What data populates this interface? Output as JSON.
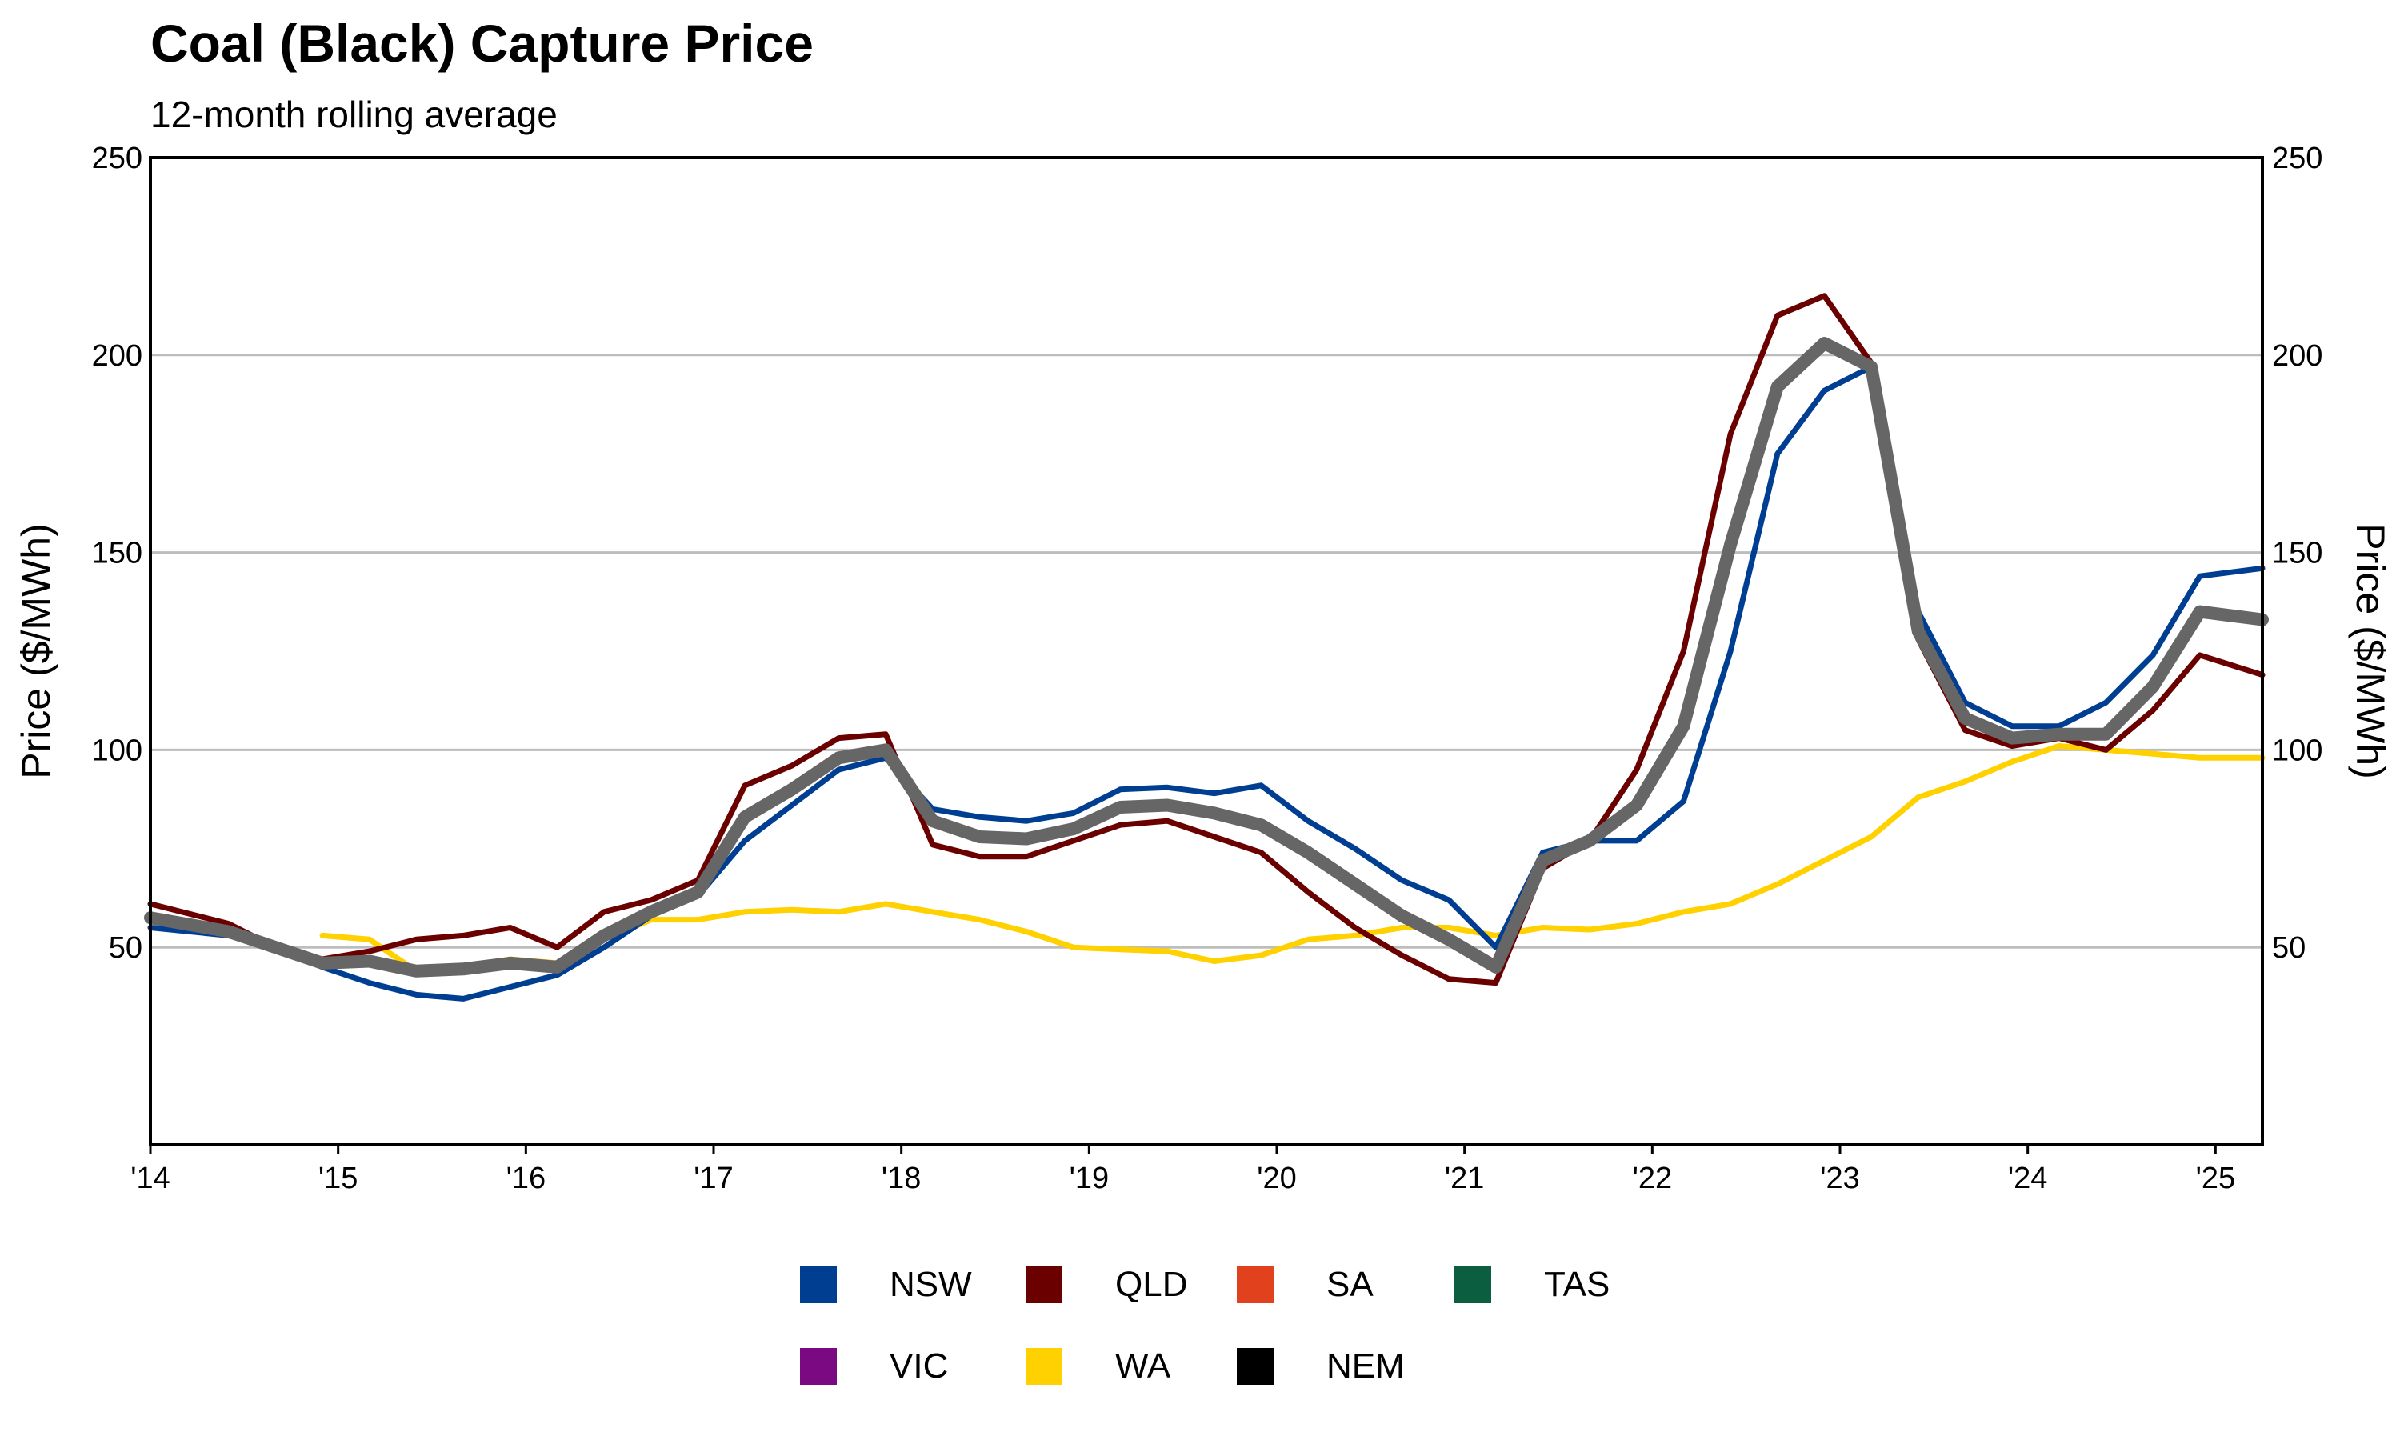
{
  "chart_data": {
    "type": "line",
    "title": "Coal (Black) Capture Price",
    "subtitle": "12-month rolling average",
    "ylabel": "Price ($/MWh)",
    "ylabel_right": "Price ($/MWh)",
    "xlabel": "",
    "ylim": [
      0,
      250
    ],
    "xlim": [
      "2014-01",
      "2025-04"
    ],
    "yticks": [
      50,
      100,
      150,
      200,
      250
    ],
    "ytick_labels": [
      "50",
      "100",
      "150",
      "200",
      "250"
    ],
    "xticks": [
      "2014-01",
      "2015-01",
      "2016-01",
      "2017-01",
      "2018-01",
      "2019-01",
      "2020-01",
      "2021-01",
      "2022-01",
      "2023-01",
      "2024-01",
      "2025-01"
    ],
    "xtick_labels": [
      "'14",
      "'15",
      "'16",
      "'17",
      "'18",
      "'19",
      "'20",
      "'21",
      "'22",
      "'23",
      "'24",
      "'25"
    ],
    "grid": "horizontal",
    "legend_position": "bottom",
    "series": [
      {
        "name": "WA",
        "color": "#FFD100",
        "width": 7,
        "points": [
          [
            "2014-12",
            53
          ],
          [
            "2015-03",
            52
          ],
          [
            "2015-06",
            44
          ],
          [
            "2015-09",
            45
          ],
          [
            "2015-12",
            47
          ],
          [
            "2016-03",
            46
          ],
          [
            "2016-06",
            52
          ],
          [
            "2016-09",
            57
          ],
          [
            "2016-12",
            57
          ],
          [
            "2017-03",
            59
          ],
          [
            "2017-06",
            59.5
          ],
          [
            "2017-09",
            59
          ],
          [
            "2017-12",
            61
          ],
          [
            "2018-03",
            59
          ],
          [
            "2018-06",
            57
          ],
          [
            "2018-09",
            54
          ],
          [
            "2018-12",
            50
          ],
          [
            "2019-03",
            49.5
          ],
          [
            "2019-06",
            49
          ],
          [
            "2019-09",
            46.5
          ],
          [
            "2019-12",
            48
          ],
          [
            "2020-03",
            52
          ],
          [
            "2020-06",
            53
          ],
          [
            "2020-09",
            55
          ],
          [
            "2020-12",
            55
          ],
          [
            "2021-03",
            53
          ],
          [
            "2021-06",
            55
          ],
          [
            "2021-09",
            54.5
          ],
          [
            "2021-12",
            56
          ],
          [
            "2022-03",
            59
          ],
          [
            "2022-06",
            61
          ],
          [
            "2022-09",
            66
          ],
          [
            "2022-12",
            72
          ],
          [
            "2023-03",
            78
          ],
          [
            "2023-06",
            88
          ],
          [
            "2023-09",
            92
          ],
          [
            "2023-12",
            97
          ],
          [
            "2024-03",
            101
          ],
          [
            "2024-06",
            100
          ],
          [
            "2024-09",
            99
          ],
          [
            "2024-12",
            98
          ],
          [
            "2025-04",
            98
          ]
        ]
      },
      {
        "name": "NSW",
        "color": "#003E92",
        "width": 7,
        "points": [
          [
            "2014-01",
            55
          ],
          [
            "2014-06",
            53
          ],
          [
            "2014-09",
            50
          ],
          [
            "2014-12",
            45
          ],
          [
            "2015-03",
            41
          ],
          [
            "2015-06",
            38
          ],
          [
            "2015-09",
            37
          ],
          [
            "2015-12",
            40
          ],
          [
            "2016-03",
            43
          ],
          [
            "2016-06",
            50
          ],
          [
            "2016-09",
            58
          ],
          [
            "2016-12",
            63
          ],
          [
            "2017-03",
            77
          ],
          [
            "2017-06",
            86
          ],
          [
            "2017-09",
            95
          ],
          [
            "2017-12",
            98
          ],
          [
            "2018-03",
            85
          ],
          [
            "2018-06",
            83
          ],
          [
            "2018-09",
            82
          ],
          [
            "2018-12",
            84
          ],
          [
            "2019-03",
            90
          ],
          [
            "2019-06",
            90.5
          ],
          [
            "2019-09",
            89
          ],
          [
            "2019-12",
            91
          ],
          [
            "2020-03",
            82
          ],
          [
            "2020-06",
            75
          ],
          [
            "2020-09",
            67
          ],
          [
            "2020-12",
            62
          ],
          [
            "2021-03",
            50
          ],
          [
            "2021-06",
            74
          ],
          [
            "2021-09",
            77
          ],
          [
            "2021-12",
            77
          ],
          [
            "2022-03",
            87
          ],
          [
            "2022-06",
            125
          ],
          [
            "2022-09",
            175
          ],
          [
            "2022-12",
            191
          ],
          [
            "2023-03",
            197
          ],
          [
            "2023-06",
            135
          ],
          [
            "2023-09",
            112
          ],
          [
            "2023-12",
            106
          ],
          [
            "2024-03",
            106
          ],
          [
            "2024-06",
            112
          ],
          [
            "2024-09",
            124
          ],
          [
            "2024-12",
            144
          ],
          [
            "2025-04",
            146
          ]
        ]
      },
      {
        "name": "QLD",
        "color": "#6A0000",
        "width": 7,
        "points": [
          [
            "2014-01",
            61
          ],
          [
            "2014-06",
            56
          ],
          [
            "2014-09",
            50
          ],
          [
            "2014-12",
            47
          ],
          [
            "2015-03",
            49
          ],
          [
            "2015-06",
            52
          ],
          [
            "2015-09",
            53
          ],
          [
            "2015-12",
            55
          ],
          [
            "2016-03",
            50
          ],
          [
            "2016-06",
            59
          ],
          [
            "2016-09",
            62
          ],
          [
            "2016-12",
            67
          ],
          [
            "2017-03",
            91
          ],
          [
            "2017-06",
            96
          ],
          [
            "2017-09",
            103
          ],
          [
            "2017-12",
            104
          ],
          [
            "2018-03",
            76
          ],
          [
            "2018-06",
            73
          ],
          [
            "2018-09",
            73
          ],
          [
            "2018-12",
            77
          ],
          [
            "2019-03",
            81
          ],
          [
            "2019-06",
            82
          ],
          [
            "2019-09",
            78
          ],
          [
            "2019-12",
            74
          ],
          [
            "2020-03",
            64
          ],
          [
            "2020-06",
            55
          ],
          [
            "2020-09",
            48
          ],
          [
            "2020-12",
            42
          ],
          [
            "2021-03",
            41
          ],
          [
            "2021-06",
            70
          ],
          [
            "2021-09",
            77
          ],
          [
            "2021-12",
            95
          ],
          [
            "2022-03",
            125
          ],
          [
            "2022-06",
            180
          ],
          [
            "2022-09",
            210
          ],
          [
            "2022-12",
            215
          ],
          [
            "2023-03",
            198
          ],
          [
            "2023-06",
            128
          ],
          [
            "2023-09",
            105
          ],
          [
            "2023-12",
            101
          ],
          [
            "2024-03",
            103
          ],
          [
            "2024-06",
            100
          ],
          [
            "2024-09",
            110
          ],
          [
            "2024-12",
            124
          ],
          [
            "2025-04",
            119
          ]
        ]
      },
      {
        "name": "NEM",
        "color": "#666666",
        "width": 16,
        "points": [
          [
            "2014-01",
            57.5
          ],
          [
            "2014-06",
            54
          ],
          [
            "2014-09",
            50
          ],
          [
            "2014-12",
            46
          ],
          [
            "2015-03",
            46.5
          ],
          [
            "2015-06",
            44
          ],
          [
            "2015-09",
            44.5
          ],
          [
            "2015-12",
            46
          ],
          [
            "2016-03",
            45
          ],
          [
            "2016-06",
            53
          ],
          [
            "2016-09",
            59
          ],
          [
            "2016-12",
            64
          ],
          [
            "2017-03",
            83
          ],
          [
            "2017-06",
            90
          ],
          [
            "2017-09",
            98
          ],
          [
            "2017-12",
            100
          ],
          [
            "2018-03",
            82
          ],
          [
            "2018-06",
            78
          ],
          [
            "2018-09",
            77.5
          ],
          [
            "2018-12",
            80
          ],
          [
            "2019-03",
            85.5
          ],
          [
            "2019-06",
            86
          ],
          [
            "2019-09",
            84
          ],
          [
            "2019-12",
            81
          ],
          [
            "2020-03",
            74
          ],
          [
            "2020-06",
            66
          ],
          [
            "2020-09",
            58
          ],
          [
            "2020-12",
            52
          ],
          [
            "2021-03",
            45
          ],
          [
            "2021-06",
            72
          ],
          [
            "2021-09",
            77
          ],
          [
            "2021-12",
            86
          ],
          [
            "2022-03",
            106
          ],
          [
            "2022-06",
            152
          ],
          [
            "2022-09",
            192
          ],
          [
            "2022-12",
            203
          ],
          [
            "2023-03",
            197
          ],
          [
            "2023-06",
            130
          ],
          [
            "2023-09",
            108
          ],
          [
            "2023-12",
            103
          ],
          [
            "2024-03",
            104
          ],
          [
            "2024-06",
            104
          ],
          [
            "2024-09",
            116
          ],
          [
            "2024-12",
            135
          ],
          [
            "2025-04",
            133
          ]
        ]
      }
    ]
  },
  "legend": {
    "items": [
      {
        "label": "NSW",
        "color": "#003E92"
      },
      {
        "label": "QLD",
        "color": "#6A0000"
      },
      {
        "label": "SA",
        "color": "#E2411E"
      },
      {
        "label": "TAS",
        "color": "#0B5E40"
      },
      {
        "label": "VIC",
        "color": "#7B0A82"
      },
      {
        "label": "WA",
        "color": "#FFD100"
      },
      {
        "label": "NEM",
        "color": "#000000"
      }
    ]
  }
}
